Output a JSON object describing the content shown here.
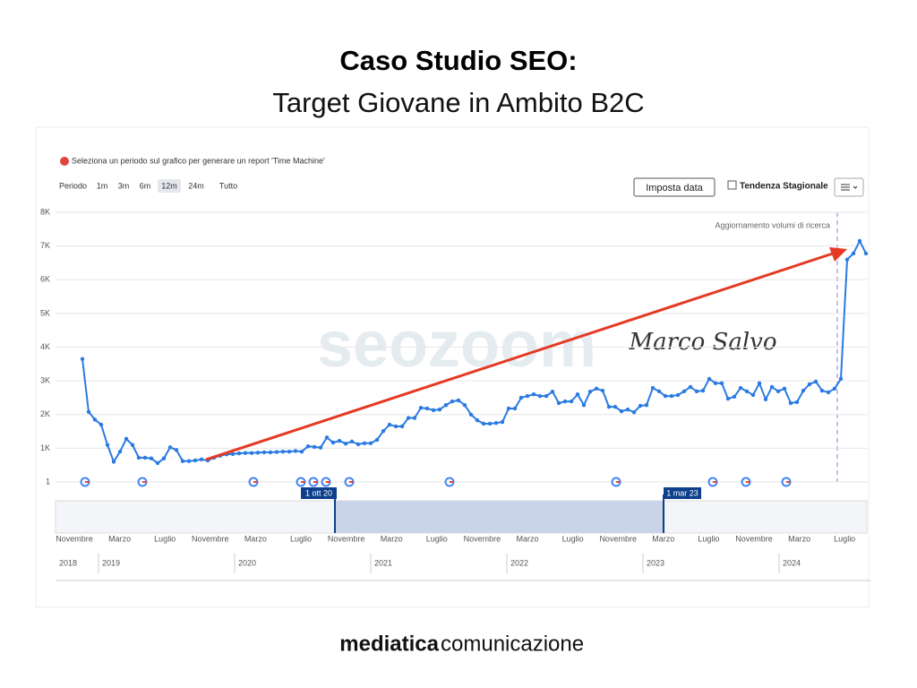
{
  "chart_data": {
    "type": "line",
    "title": "Caso Studio SEO:",
    "subtitle": "Target Giovane in Ambito B2C",
    "info": "Seleziona un periodo sul grafico per generare un report 'Time Machine'",
    "period_label": "Periodo",
    "period_buttons": [
      "1m",
      "3m",
      "6m",
      "12m",
      "24m",
      "Tutto"
    ],
    "date_button": "Imposta data",
    "seasonal_label": "Tendenza Stagionale",
    "annotation": "Aggiornamento volumi di ricerca",
    "range_start": "1 ott 20",
    "range_end": "1 mar 23",
    "watermark": "seozoom",
    "signature": "Marco Salvo",
    "navigator_months": [
      "Novembre",
      "Marzo",
      "Luglio",
      "Novembre",
      "Marzo",
      "Luglio",
      "Novembre",
      "Marzo",
      "Luglio",
      "Novembre",
      "Marzo",
      "Luglio",
      "Novembre",
      "Marzo",
      "Luglio",
      "Novembre",
      "Marzo",
      "Luglio"
    ],
    "navigator_years": [
      "2018",
      "2019",
      "2020",
      "2021",
      "2022",
      "2023",
      "2024"
    ],
    "footer_bold": "mediatica",
    "footer_light": "comunicazione",
    "ylim": [
      1,
      8000
    ],
    "yticks": [
      1,
      {
        "value": 1000,
        "label": "1K"
      },
      {
        "value": 2000,
        "label": "2K"
      },
      {
        "value": 3000,
        "label": "3K"
      },
      {
        "value": 4000,
        "label": "4K"
      },
      {
        "value": 5000,
        "label": "5K"
      },
      {
        "value": 6000,
        "label": "6K"
      },
      {
        "value": 7000,
        "label": "7K"
      },
      {
        "value": 8000,
        "label": "8K"
      }
    ],
    "grid": true,
    "color": "#2a7ae2",
    "categories": [
      null,
      null,
      null,
      null,
      null,
      null,
      null,
      null,
      null,
      null,
      null,
      null,
      null,
      null,
      null,
      null,
      null,
      null,
      null,
      null,
      null,
      null,
      null,
      null,
      null,
      null,
      null,
      null,
      null,
      null,
      null,
      null,
      null,
      null,
      null,
      null,
      null,
      null,
      null,
      null,
      null,
      null,
      null,
      null,
      null,
      null,
      null,
      null,
      null,
      null,
      null,
      null,
      null,
      null,
      null,
      null,
      null,
      null,
      null,
      null,
      null,
      null,
      null,
      null,
      null,
      null,
      null,
      null,
      null,
      null,
      null,
      null,
      null,
      null,
      null,
      null,
      null,
      null,
      null,
      null,
      null,
      null,
      null,
      null,
      null,
      null,
      null,
      null,
      null,
      null,
      null,
      null,
      null,
      null,
      null,
      null,
      null,
      null,
      null,
      null,
      null,
      null,
      null,
      null,
      null,
      null,
      null,
      null,
      null,
      null,
      null,
      null,
      null,
      null,
      null,
      null,
      null,
      null,
      null,
      null,
      null,
      null,
      null,
      null,
      null,
      null
    ],
    "values": [
      3650,
      2080,
      1850,
      1700,
      1100,
      600,
      900,
      1280,
      1100,
      720,
      720,
      700,
      560,
      700,
      1030,
      950,
      620,
      620,
      640,
      670,
      640,
      720,
      780,
      820,
      830,
      850,
      860,
      860,
      870,
      880,
      880,
      890,
      900,
      900,
      920,
      900,
      1060,
      1040,
      1020,
      1320,
      1170,
      1220,
      1140,
      1200,
      1120,
      1150,
      1150,
      1250,
      1510,
      1700,
      1650,
      1650,
      1900,
      1900,
      2200,
      2180,
      2130,
      2150,
      2280,
      2390,
      2420,
      2280,
      2000,
      1830,
      1730,
      1730,
      1750,
      1780,
      2180,
      2180,
      2500,
      2550,
      2600,
      2550,
      2550,
      2680,
      2340,
      2390,
      2390,
      2600,
      2280,
      2680,
      2770,
      2710,
      2230,
      2230,
      2100,
      2150,
      2070,
      2260,
      2280,
      2790,
      2690,
      2550,
      2550,
      2580,
      2690,
      2820,
      2690,
      2710,
      3060,
      2930,
      2930,
      2470,
      2530,
      2790,
      2690,
      2580,
      2930,
      2450,
      2820,
      2690,
      2770,
      2340,
      2370,
      2710,
      2900,
      2980,
      2710,
      2660,
      2770,
      3060,
      6600,
      6780,
      7150,
      6780
    ]
  }
}
